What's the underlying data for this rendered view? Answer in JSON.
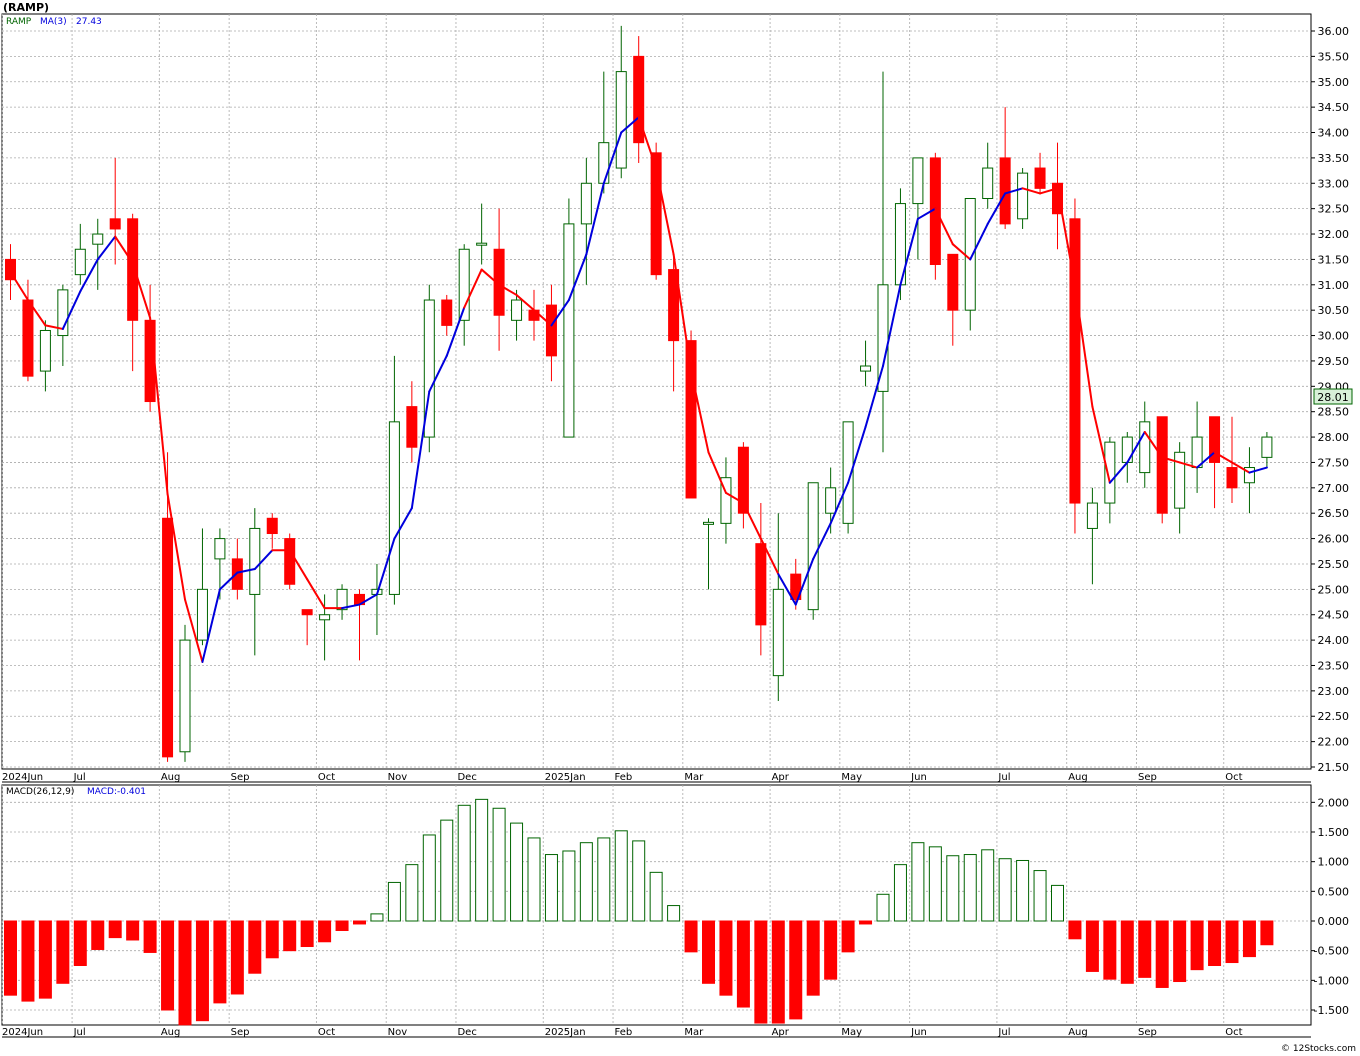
{
  "title": "(RAMP)",
  "footer": "© 12Stocks.com",
  "colors": {
    "up": "#006400",
    "down": "#ff0000",
    "ma_up": "#0000dd",
    "ma_down": "#ff0000",
    "grid": "#aaaaaa",
    "price_tag_bg": "#d8f0d8"
  },
  "legend": {
    "symbol": "RAMP",
    "ma_label": "MA(3)",
    "ma_value": "27.43"
  },
  "macd_legend": {
    "label": "MACD(26,12,9)",
    "value_label": "MACD:-0.401"
  },
  "last_price_label": "28.01",
  "months": [
    {
      "i": 0,
      "label": "2024Jun"
    },
    {
      "i": 4,
      "label": "Jul"
    },
    {
      "i": 9,
      "label": "Aug"
    },
    {
      "i": 13,
      "label": "Sep"
    },
    {
      "i": 18,
      "label": "Oct"
    },
    {
      "i": 22,
      "label": "Nov"
    },
    {
      "i": 26,
      "label": "Dec"
    },
    {
      "i": 31,
      "label": "2025Jan"
    },
    {
      "i": 35,
      "label": "Feb"
    },
    {
      "i": 39,
      "label": "Mar"
    },
    {
      "i": 44,
      "label": "Apr"
    },
    {
      "i": 48,
      "label": "May"
    },
    {
      "i": 52,
      "label": "Jun"
    },
    {
      "i": 57,
      "label": "Jul"
    },
    {
      "i": 61,
      "label": "Aug"
    },
    {
      "i": 65,
      "label": "Sep"
    },
    {
      "i": 70,
      "label": "Oct"
    }
  ],
  "chart_data": [
    {
      "type": "candlestick",
      "title": "(RAMP)",
      "ylim": [
        21.5,
        36.0
      ],
      "y_ticks": [
        "21.50",
        "22.00",
        "22.50",
        "23.00",
        "23.50",
        "24.00",
        "24.50",
        "25.00",
        "25.50",
        "26.00",
        "26.50",
        "27.00",
        "27.50",
        "28.00",
        "28.50",
        "29.00",
        "29.50",
        "30.00",
        "30.50",
        "31.00",
        "31.50",
        "32.00",
        "32.50",
        "33.00",
        "33.50",
        "34.00",
        "34.50",
        "35.00",
        "35.50",
        "36.00"
      ],
      "grid": true,
      "period": "weekly",
      "ohlc": [
        [
          31.5,
          31.8,
          30.7,
          31.1
        ],
        [
          30.7,
          31.1,
          29.1,
          29.2
        ],
        [
          29.3,
          30.3,
          28.9,
          30.1
        ],
        [
          30.0,
          31.0,
          29.4,
          30.9
        ],
        [
          31.2,
          32.2,
          31.0,
          31.7
        ],
        [
          31.8,
          32.3,
          30.9,
          32.0
        ],
        [
          32.3,
          33.5,
          31.4,
          32.1
        ],
        [
          32.3,
          32.4,
          29.3,
          30.3
        ],
        [
          30.3,
          31.0,
          28.5,
          28.7
        ],
        [
          26.4,
          27.7,
          21.6,
          21.7
        ],
        [
          21.8,
          24.3,
          21.6,
          24.0
        ],
        [
          24.0,
          26.2,
          23.9,
          25.0
        ],
        [
          25.6,
          26.2,
          24.8,
          26.0
        ],
        [
          25.6,
          26.0,
          24.8,
          25.0
        ],
        [
          24.9,
          26.6,
          23.7,
          26.2
        ],
        [
          26.4,
          26.5,
          25.8,
          26.1
        ],
        [
          26.0,
          26.1,
          25.0,
          25.1
        ],
        [
          24.6,
          24.6,
          23.9,
          24.5
        ],
        [
          24.4,
          24.9,
          23.6,
          24.5
        ],
        [
          24.6,
          25.1,
          24.4,
          25.0
        ],
        [
          24.9,
          25.0,
          23.6,
          24.7
        ],
        [
          24.9,
          25.5,
          24.1,
          25.0
        ],
        [
          24.9,
          29.6,
          24.7,
          28.3
        ],
        [
          28.6,
          29.1,
          27.5,
          27.8
        ],
        [
          28.0,
          31.0,
          27.7,
          30.7
        ],
        [
          30.7,
          30.8,
          30.0,
          30.2
        ],
        [
          30.3,
          31.8,
          29.8,
          31.7
        ],
        [
          31.8,
          32.6,
          31.4,
          31.8
        ],
        [
          31.7,
          32.5,
          29.7,
          30.4
        ],
        [
          30.3,
          30.9,
          29.9,
          30.7
        ],
        [
          30.5,
          30.9,
          29.9,
          30.3
        ],
        [
          30.6,
          31.0,
          29.1,
          29.6
        ],
        [
          28.0,
          32.7,
          28.0,
          32.2
        ],
        [
          32.2,
          33.5,
          31.0,
          33.0
        ],
        [
          33.0,
          35.2,
          32.8,
          33.8
        ],
        [
          33.3,
          36.1,
          33.1,
          35.2
        ],
        [
          35.5,
          35.9,
          33.4,
          33.8
        ],
        [
          33.6,
          33.8,
          31.1,
          31.2
        ],
        [
          31.3,
          31.6,
          28.9,
          29.9
        ],
        [
          29.9,
          30.1,
          26.8,
          26.8
        ],
        [
          26.3,
          26.4,
          25.0,
          26.3
        ],
        [
          26.3,
          27.6,
          25.9,
          27.2
        ],
        [
          27.8,
          27.9,
          26.2,
          26.5
        ],
        [
          25.9,
          26.7,
          23.7,
          24.3
        ],
        [
          23.3,
          26.5,
          22.8,
          25.0
        ],
        [
          25.3,
          25.6,
          24.6,
          24.8
        ],
        [
          24.6,
          27.1,
          24.4,
          27.1
        ],
        [
          26.5,
          27.4,
          26.1,
          27.0
        ],
        [
          26.3,
          28.3,
          26.1,
          28.3
        ],
        [
          29.3,
          29.9,
          29.0,
          29.4
        ],
        [
          28.9,
          35.2,
          27.7,
          31.0
        ],
        [
          31.0,
          32.9,
          30.7,
          32.6
        ],
        [
          32.6,
          33.5,
          31.5,
          33.5
        ],
        [
          33.5,
          33.6,
          31.1,
          31.4
        ],
        [
          31.6,
          31.6,
          29.8,
          30.5
        ],
        [
          30.5,
          32.7,
          30.1,
          32.7
        ],
        [
          32.7,
          33.8,
          32.5,
          33.3
        ],
        [
          33.5,
          34.5,
          32.1,
          32.2
        ],
        [
          32.3,
          33.3,
          32.1,
          33.2
        ],
        [
          33.3,
          33.6,
          32.8,
          32.9
        ],
        [
          33.0,
          33.8,
          31.7,
          32.4
        ],
        [
          32.3,
          32.7,
          26.1,
          26.7
        ],
        [
          26.2,
          27.0,
          25.1,
          26.7
        ],
        [
          26.7,
          28.0,
          26.3,
          27.9
        ],
        [
          27.5,
          28.1,
          27.1,
          28.0
        ],
        [
          27.3,
          28.7,
          27.0,
          28.3
        ],
        [
          28.4,
          28.4,
          26.3,
          26.5
        ],
        [
          26.6,
          27.9,
          26.1,
          27.7
        ],
        [
          27.4,
          28.7,
          26.9,
          28.0
        ],
        [
          28.4,
          28.4,
          26.6,
          27.5
        ],
        [
          27.4,
          28.4,
          26.7,
          27.0
        ],
        [
          27.1,
          27.8,
          26.5,
          27.4
        ],
        [
          27.6,
          28.1,
          27.4,
          28.0
        ]
      ],
      "ma3": [
        31.25,
        30.7,
        30.2,
        30.13,
        30.87,
        31.5,
        31.95,
        31.43,
        30.35,
        26.88,
        24.8,
        23.57,
        25.0,
        25.33,
        25.4,
        25.77,
        25.77,
        25.2,
        24.63,
        24.63,
        24.7,
        24.9,
        26.0,
        26.6,
        28.9,
        29.6,
        30.55,
        31.3,
        31.0,
        30.8,
        30.5,
        30.2,
        30.7,
        31.6,
        33.0,
        34.0,
        34.3,
        33.3,
        31.6,
        29.3,
        27.7,
        26.9,
        26.7,
        26.0,
        25.3,
        24.7,
        25.6,
        26.3,
        27.1,
        28.2,
        29.4,
        31.0,
        32.3,
        32.5,
        31.8,
        31.5,
        32.2,
        32.8,
        32.9,
        32.8,
        32.9,
        31.0,
        28.6,
        27.1,
        27.5,
        28.1,
        27.6,
        27.5,
        27.4,
        27.7,
        27.5,
        27.3,
        27.4
      ],
      "ma_trend": [
        0,
        0,
        0,
        0,
        1,
        1,
        1,
        0,
        0,
        0,
        0,
        0,
        1,
        1,
        1,
        1,
        0,
        0,
        0,
        0,
        1,
        1,
        1,
        1,
        1,
        1,
        1,
        0,
        0,
        0,
        0,
        0,
        1,
        1,
        1,
        1,
        1,
        0,
        0,
        0,
        0,
        0,
        0,
        0,
        0,
        1,
        1,
        1,
        1,
        1,
        1,
        1,
        1,
        1,
        0,
        0,
        1,
        1,
        1,
        0,
        0,
        0,
        0,
        0,
        1,
        1,
        0,
        0,
        0,
        1,
        0,
        0,
        1
      ],
      "last_price": 28.01
    },
    {
      "type": "bar",
      "title": "MACD(26,12,9)",
      "ylim": [
        -1.75,
        2.1
      ],
      "y_ticks": [
        "-1.500",
        "-1.000",
        "-0.500",
        "0.000",
        "0.500",
        "1.000",
        "1.500",
        "2.000"
      ],
      "values": [
        -1.25,
        -1.35,
        -1.3,
        -1.05,
        -0.75,
        -0.48,
        -0.28,
        -0.32,
        -0.53,
        -1.5,
        -1.75,
        -1.68,
        -1.38,
        -1.23,
        -0.88,
        -0.62,
        -0.5,
        -0.43,
        -0.35,
        -0.16,
        -0.05,
        0.12,
        0.65,
        0.95,
        1.45,
        1.7,
        1.95,
        2.05,
        1.9,
        1.65,
        1.4,
        1.12,
        1.18,
        1.32,
        1.4,
        1.52,
        1.35,
        0.82,
        0.26,
        -0.52,
        -1.05,
        -1.25,
        -1.45,
        -1.72,
        -1.72,
        -1.65,
        -1.25,
        -0.98,
        -0.52,
        -0.05,
        0.45,
        0.95,
        1.32,
        1.25,
        1.1,
        1.12,
        1.2,
        1.05,
        1.02,
        0.85,
        0.6,
        -0.3,
        -0.85,
        -0.98,
        -1.05,
        -0.95,
        -1.12,
        -1.02,
        -0.82,
        -0.75,
        -0.7,
        -0.6,
        -0.4
      ],
      "last_value": -0.401
    }
  ]
}
